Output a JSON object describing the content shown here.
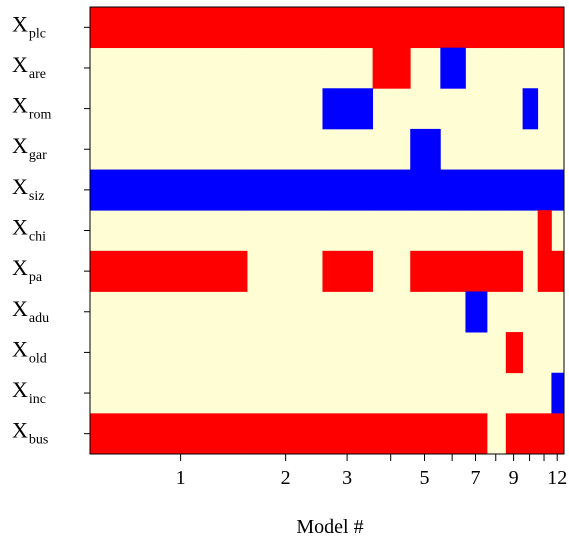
{
  "chart_data": {
    "type": "heatmap",
    "title": "",
    "xlabel": "Model #",
    "ylabel": "",
    "x_scale": "log",
    "xlim": [
      0.55,
      12.55
    ],
    "rows": [
      {
        "main": "X",
        "sub": "plc"
      },
      {
        "main": "X",
        "sub": "are"
      },
      {
        "main": "X",
        "sub": "rom"
      },
      {
        "main": "X",
        "sub": "gar"
      },
      {
        "main": "X",
        "sub": "siz"
      },
      {
        "main": "X",
        "sub": "chi"
      },
      {
        "main": "X",
        "sub": "pa"
      },
      {
        "main": "X",
        "sub": "adu"
      },
      {
        "main": "X",
        "sub": "old"
      },
      {
        "main": "X",
        "sub": "inc"
      },
      {
        "main": "X",
        "sub": "bus"
      }
    ],
    "x_ticks": [
      1,
      2,
      3,
      4,
      5,
      6,
      7,
      8,
      9,
      10,
      11,
      12
    ],
    "x_tick_labels": [
      "1",
      "2",
      "3",
      "",
      "5",
      "",
      "7",
      "",
      "9",
      "",
      "",
      "12"
    ],
    "legend": "none",
    "colors": {
      "positive": "#ff0000",
      "negative": "#0000ff",
      "excluded": "#fffdd4"
    },
    "values": [
      [
        1,
        1,
        1,
        1,
        1,
        1,
        1,
        1,
        1,
        1,
        1,
        1
      ],
      [
        0,
        0,
        0,
        1,
        0,
        -1,
        0,
        0,
        0,
        0,
        0,
        0
      ],
      [
        0,
        0,
        -1,
        0,
        0,
        0,
        0,
        0,
        0,
        -1,
        0,
        0
      ],
      [
        0,
        0,
        0,
        0,
        -1,
        0,
        0,
        0,
        0,
        0,
        0,
        0
      ],
      [
        -1,
        -1,
        -1,
        -1,
        -1,
        -1,
        -1,
        -1,
        -1,
        -1,
        -1,
        -1
      ],
      [
        0,
        0,
        0,
        0,
        0,
        0,
        0,
        0,
        0,
        0,
        1,
        0
      ],
      [
        1,
        0,
        1,
        0,
        1,
        1,
        1,
        1,
        1,
        0,
        1,
        1
      ],
      [
        0,
        0,
        0,
        0,
        0,
        0,
        -1,
        0,
        0,
        0,
        0,
        0
      ],
      [
        0,
        0,
        0,
        0,
        0,
        0,
        0,
        0,
        1,
        0,
        0,
        0
      ],
      [
        0,
        0,
        0,
        0,
        0,
        0,
        0,
        0,
        0,
        0,
        0,
        -1
      ],
      [
        1,
        1,
        1,
        1,
        1,
        1,
        1,
        0,
        1,
        1,
        1,
        1
      ]
    ]
  }
}
